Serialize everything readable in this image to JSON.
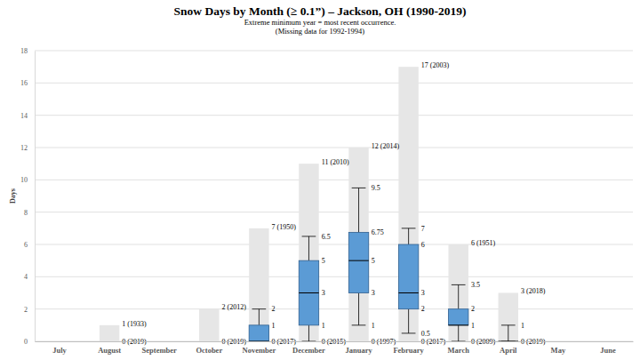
{
  "chart_data": {
    "type": "box",
    "title": "Snow Days by Month (≥ 0.1”) – Jackson, OH (1990-2019)",
    "subtitle": [
      "Extreme minimum year = most recent occurrence.",
      "(Missing data for 1992-1994)"
    ],
    "y_label": "Days",
    "categories": [
      "July",
      "August",
      "September",
      "October",
      "November",
      "December",
      "January",
      "February",
      "March",
      "April",
      "May",
      "June"
    ],
    "max": [
      null,
      1,
      null,
      2,
      7,
      11,
      12,
      17,
      6,
      3,
      null,
      null
    ],
    "max_labels": [
      null,
      "1 (1933)",
      null,
      "2 (2012)",
      "7 (1950)",
      "11 (2010)",
      "12 (2014)",
      "17 (2003)",
      "6 (1951)",
      "3 (2018)",
      null,
      null
    ],
    "min": [
      null,
      0,
      null,
      0,
      0,
      0,
      0,
      0,
      0,
      0,
      null,
      null
    ],
    "min_labels": [
      null,
      "0 (2019)",
      null,
      "0 (2019)",
      "0 (2017)",
      "0 (2015)",
      "0 (1997)",
      "0 (2017)",
      "0 (2009)",
      "0 (2019)",
      null,
      null
    ],
    "whisker_low": [
      null,
      null,
      null,
      null,
      0,
      0,
      1,
      0.5,
      0,
      0,
      null,
      null
    ],
    "q1": [
      null,
      null,
      null,
      null,
      0,
      1,
      3,
      2,
      1,
      0,
      null,
      null
    ],
    "median": [
      null,
      null,
      null,
      null,
      0,
      3,
      5,
      3,
      1,
      0,
      null,
      null
    ],
    "q3": [
      null,
      null,
      null,
      null,
      1,
      5,
      6.75,
      6,
      2,
      0,
      null,
      null
    ],
    "whisker_high": [
      null,
      null,
      null,
      null,
      2,
      6.5,
      9.5,
      7,
      3.5,
      1,
      null,
      null
    ],
    "ylim": [
      0,
      18
    ],
    "yticks": [
      0,
      2,
      4,
      6,
      8,
      10,
      12,
      14,
      16,
      18
    ],
    "grid": true
  }
}
